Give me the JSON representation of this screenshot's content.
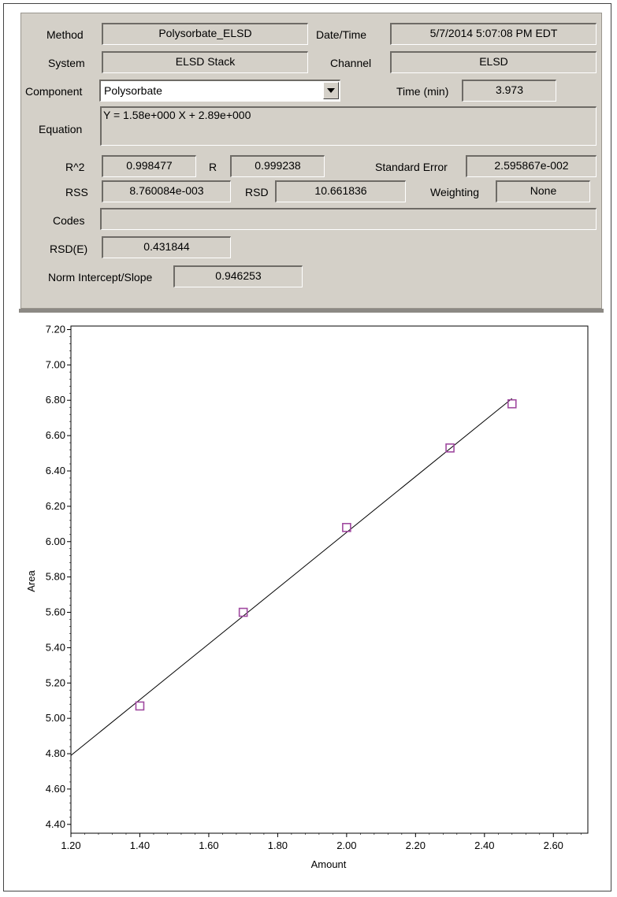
{
  "form": {
    "method_label": "Method",
    "method_value": "Polysorbate_ELSD",
    "datetime_label": "Date/Time",
    "datetime_value": "5/7/2014 5:07:08 PM EDT",
    "system_label": "System",
    "system_value": "ELSD Stack",
    "channel_label": "Channel",
    "channel_value": "ELSD",
    "component_label": "Component",
    "component_value": "Polysorbate",
    "time_label": "Time (min)",
    "time_value": "3.973",
    "equation_label": "Equation",
    "equation_value": "Y = 1.58e+000 X + 2.89e+000",
    "r2_label": "R^2",
    "r2_value": "0.998477",
    "r_label": "R",
    "r_value": "0.999238",
    "std_error_label": "Standard Error",
    "std_error_value": "2.595867e-002",
    "rss_label": "RSS",
    "rss_value": "8.760084e-003",
    "rsd_label": "RSD",
    "rsd_value": "10.661836",
    "weighting_label": "Weighting",
    "weighting_value": "None",
    "codes_label": "Codes",
    "codes_value": "",
    "rsde_label": "RSD(E)",
    "rsde_value": "0.431844",
    "norm_label": "Norm Intercept/Slope",
    "norm_value": "0.946253"
  },
  "icons": {
    "combo_arrow": "chevron-down-icon"
  },
  "chart_data": {
    "type": "scatter",
    "xlabel": "Amount",
    "ylabel": "Area",
    "xlim": [
      1.2,
      2.7
    ],
    "ylim": [
      4.35,
      7.22
    ],
    "x_ticks": [
      "1.20",
      "1.40",
      "1.60",
      "1.80",
      "2.00",
      "2.20",
      "2.40",
      "2.60"
    ],
    "y_ticks": [
      "4.40",
      "4.60",
      "4.80",
      "5.00",
      "5.20",
      "5.40",
      "5.60",
      "5.80",
      "6.00",
      "6.20",
      "6.40",
      "6.60",
      "6.80",
      "7.00",
      "7.20"
    ],
    "points": [
      {
        "x": 1.4,
        "y": 5.07
      },
      {
        "x": 1.7,
        "y": 5.6
      },
      {
        "x": 2.0,
        "y": 6.08
      },
      {
        "x": 2.3,
        "y": 6.53
      },
      {
        "x": 2.48,
        "y": 6.78
      }
    ],
    "fit_line": {
      "x": [
        1.2,
        2.48
      ],
      "y": [
        4.79,
        6.81
      ]
    },
    "marker_color": "#a04aa0",
    "line_color": "#000000",
    "grid": false
  }
}
